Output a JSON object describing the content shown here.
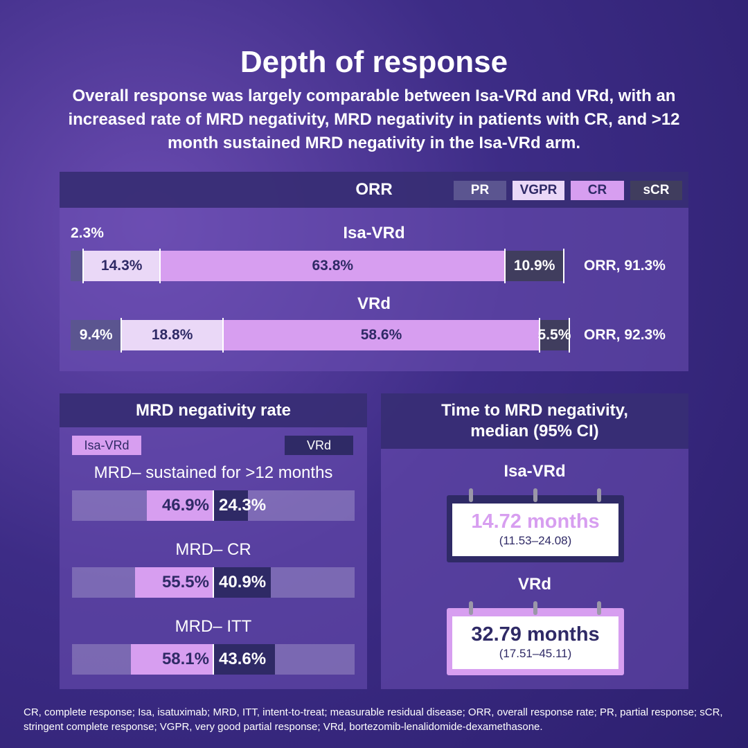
{
  "title": "Depth of response",
  "subtitle": "Overall response was largely comparable between Isa-VRd and VRd, with an increased rate of MRD negativity, MRD negativity in patients with CR, and >12 month sustained MRD negativity in the Isa-VRd arm.",
  "orr": {
    "title": "ORR",
    "legend": [
      {
        "name": "PR",
        "color": "#5b5590"
      },
      {
        "name": "VGPR",
        "color": "#ead8f7"
      },
      {
        "name": "CR",
        "color": "#d79ef0"
      },
      {
        "name": "sCR",
        "color": "#403d5e"
      }
    ],
    "arms": [
      {
        "name": "Isa-VRd",
        "values": [
          2.3,
          14.3,
          63.8,
          10.9
        ],
        "value_labels": [
          "2.3%",
          "14.3%",
          "63.8%",
          "10.9%"
        ],
        "total_label": "ORR, 91.3%"
      },
      {
        "name": "VRd",
        "values": [
          9.4,
          18.8,
          58.6,
          5.5
        ],
        "value_labels": [
          "9.4%",
          "18.8%",
          "58.6%",
          "5.5%"
        ],
        "total_label": "ORR, 92.3%"
      }
    ]
  },
  "mrd": {
    "title": "MRD negativity rate",
    "legend": [
      {
        "name": "Isa-VRd",
        "color": "#d79ef0"
      },
      {
        "name": "VRd",
        "color": "#2f2a66"
      }
    ],
    "rows": [
      {
        "label": "MRD– sustained for >12 months",
        "values": [
          46.9,
          24.3
        ],
        "value_labels": [
          "46.9%",
          "24.3%"
        ]
      },
      {
        "label": "MRD– CR",
        "values": [
          55.5,
          40.9
        ],
        "value_labels": [
          "55.5%",
          "40.9%"
        ]
      },
      {
        "label": "MRD– ITT",
        "values": [
          58.1,
          43.6
        ],
        "value_labels": [
          "58.1%",
          "43.6%"
        ]
      }
    ]
  },
  "ttm": {
    "title": "Time to MRD negativity, median (95% CI)",
    "items": [
      {
        "arm": "Isa-VRd",
        "median": "14.72 months",
        "ci": "(11.53–24.08)"
      },
      {
        "arm": "VRd",
        "median": "32.79 months",
        "ci": "(17.51–45.11)"
      }
    ]
  },
  "footnote": "CR, complete response; Isa, isatuximab; MRD, ITT, intent-to-treat; measurable residual disease; ORR, overall response rate; PR, partial response; sCR, stringent complete response; VGPR, very good partial response; VRd, bortezomib-lenalidomide-dexamethasone."
}
